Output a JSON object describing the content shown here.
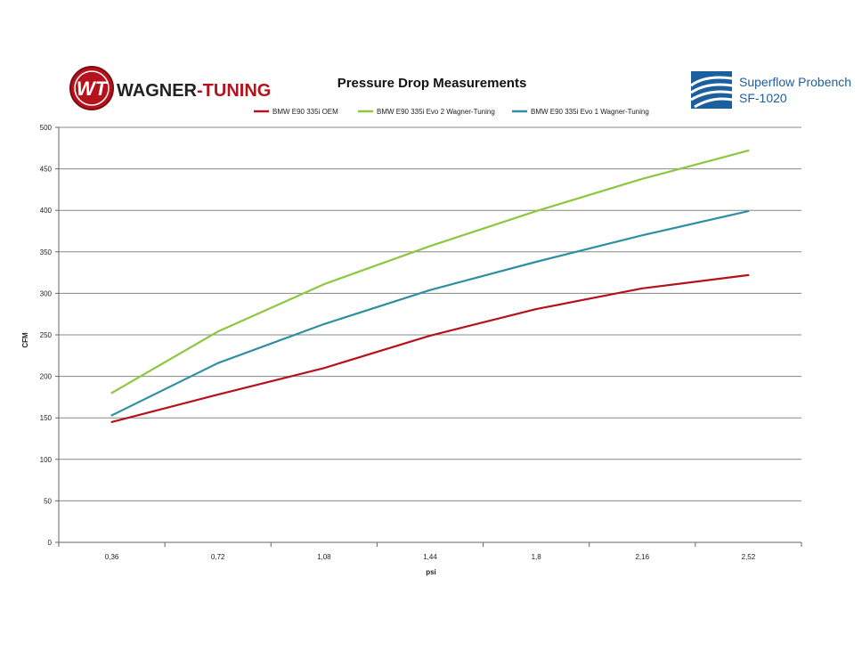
{
  "branding": {
    "left_logo_mark": "WT",
    "left_logo_text_a": "WAGNER",
    "left_logo_text_b": "-TUNING",
    "right_logo_line1": "Superflow Probench",
    "right_logo_line2": "SF-1020",
    "colors": {
      "wagner_red": "#b5121b",
      "superflow_blue": "#1c5f9e"
    }
  },
  "chart_data": {
    "type": "line",
    "title": "Pressure Drop Measurements",
    "xlabel": "psi",
    "ylabel": "CFM",
    "categories": [
      "0,36",
      "0,72",
      "1,08",
      "1,44",
      "1,8",
      "2,16",
      "2,52"
    ],
    "ylim": [
      0,
      500
    ],
    "yticks": [
      0,
      50,
      100,
      150,
      200,
      250,
      300,
      350,
      400,
      450,
      500
    ],
    "grid": true,
    "legend_position": "top",
    "series": [
      {
        "name": "BMW E90 335i OEM",
        "color": "#b5121b",
        "values": [
          145,
          178,
          210,
          249,
          281,
          306,
          322
        ]
      },
      {
        "name": "BMW E90 335i Evo 2 Wagner-Tuning",
        "color": "#8dc63f",
        "values": [
          180,
          254,
          311,
          357,
          399,
          438,
          472
        ]
      },
      {
        "name": "BMW E90 335i Evo 1 Wagner-Tuning",
        "color": "#2f8fa2",
        "values": [
          153,
          216,
          263,
          304,
          338,
          370,
          399
        ]
      }
    ]
  }
}
